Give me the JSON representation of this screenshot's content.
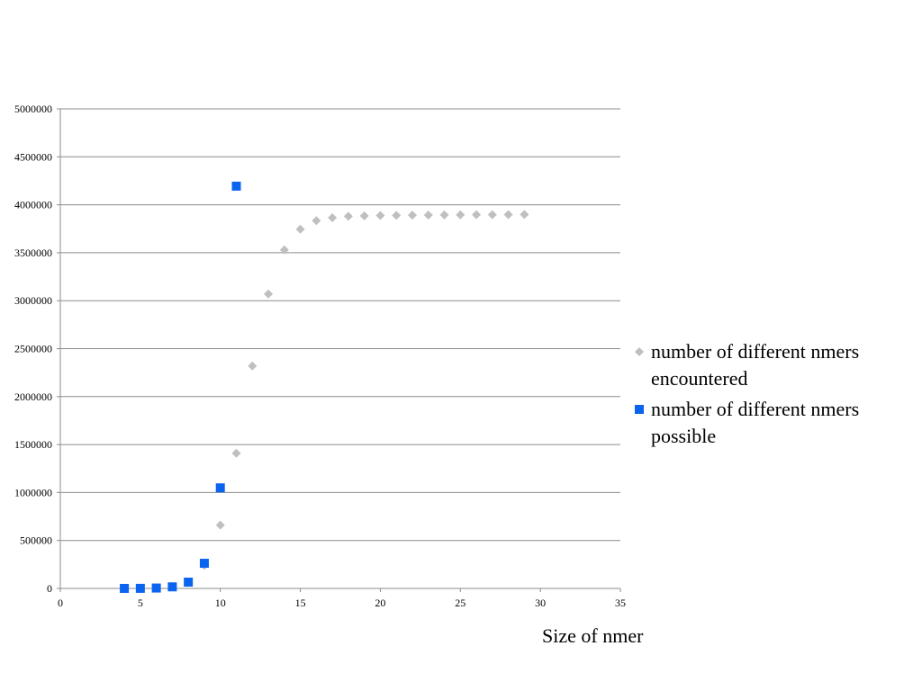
{
  "chart_data": {
    "type": "scatter",
    "title": "",
    "xlabel": "Size of nmer",
    "ylabel": "",
    "xlim": [
      0,
      35
    ],
    "ylim": [
      0,
      5000000
    ],
    "x_ticks": [
      "0",
      "5",
      "10",
      "15",
      "20",
      "25",
      "30",
      "35"
    ],
    "y_ticks": [
      "0",
      "500000",
      "1000000",
      "1500000",
      "2000000",
      "2500000",
      "3000000",
      "3500000",
      "4000000",
      "4500000",
      "5000000"
    ],
    "grid": "horizontal",
    "legend_position": "right",
    "series": [
      {
        "name": "number of different nmers encountered",
        "marker": "diamond",
        "color": "#BFBFBF",
        "x": [
          4,
          5,
          6,
          7,
          8,
          9,
          10,
          11,
          12,
          13,
          14,
          15,
          16,
          17,
          18,
          19,
          20,
          21,
          22,
          23,
          24,
          25,
          26,
          27,
          28,
          29
        ],
        "y": [
          256,
          1024,
          4096,
          16000,
          60000,
          240000,
          660000,
          1410000,
          2320000,
          3070000,
          3530000,
          3745000,
          3835000,
          3865000,
          3880000,
          3885000,
          3888000,
          3890000,
          3892000,
          3893000,
          3894000,
          3895000,
          3896000,
          3897000,
          3898000,
          3899000
        ]
      },
      {
        "name": "number of different nmers possible",
        "marker": "square",
        "color": "#0A64F0",
        "x": [
          4,
          5,
          6,
          7,
          8,
          9,
          10,
          11
        ],
        "y": [
          256,
          1024,
          4096,
          16384,
          65536,
          262144,
          1048576,
          4194304
        ]
      }
    ]
  }
}
